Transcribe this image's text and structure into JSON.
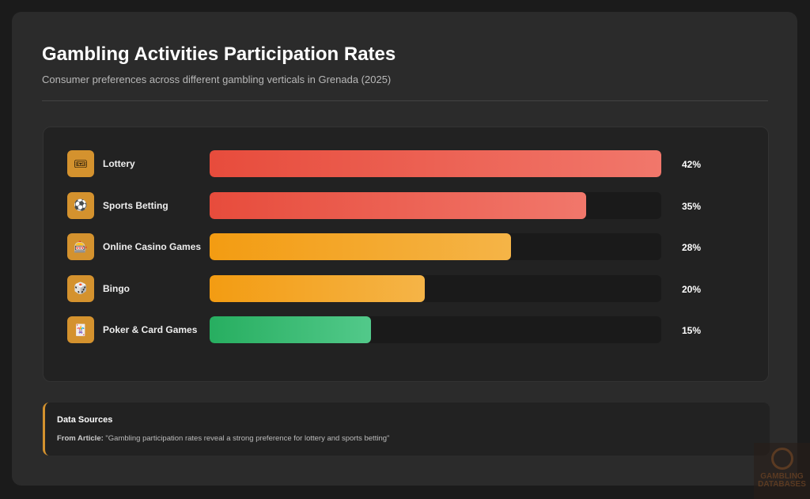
{
  "header": {
    "title": "Gambling Activities Participation Rates",
    "subtitle": "Consumer preferences across different gambling verticals in Grenada (2025)"
  },
  "chart_data": {
    "type": "bar",
    "orientation": "horizontal",
    "title": "Gambling Activities Participation Rates",
    "categories": [
      "Lottery",
      "Sports Betting",
      "Online Casino Games",
      "Bingo",
      "Poker & Card Games"
    ],
    "values": [
      42,
      35,
      28,
      20,
      15
    ],
    "labels": [
      "42%",
      "35%",
      "28%",
      "20%",
      "15%"
    ],
    "icons": [
      "ticket-icon",
      "soccer-ball-icon",
      "slot-machine-icon",
      "dice-icon",
      "playing-card-icon"
    ],
    "icon_glyphs": [
      "🎟",
      "⚽",
      "🎰",
      "🎲",
      "🃏"
    ],
    "colors": [
      [
        "#e74c3c",
        "#f1776b"
      ],
      [
        "#e74c3c",
        "#f1776b"
      ],
      [
        "#f39c12",
        "#f5b447"
      ],
      [
        "#f39c12",
        "#f5b447"
      ],
      [
        "#27ae60",
        "#52c98a"
      ]
    ],
    "xlim": [
      0,
      42
    ],
    "unit": "%"
  },
  "sources": {
    "title": "Data Sources",
    "prefix": "From Article:",
    "quote": "\"Gambling participation rates reveal a strong preference for lottery and sports betting\""
  },
  "watermark": {
    "line1": "GAMBLING",
    "line2": "DATABASES"
  }
}
